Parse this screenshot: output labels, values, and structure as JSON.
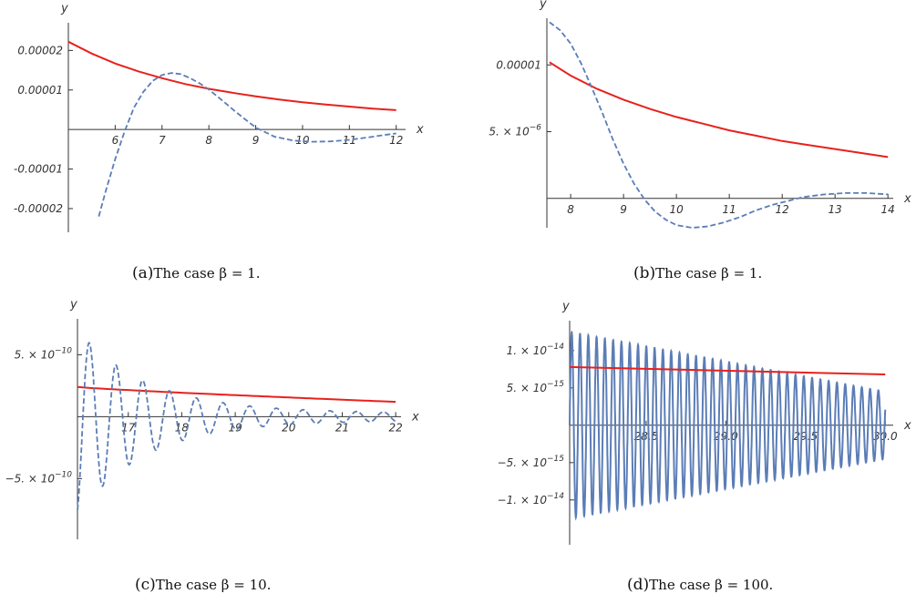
{
  "colors": {
    "red_curve": "#e8211d",
    "blue_curve": "#5b7db6"
  },
  "chart_data": [
    {
      "id": "a",
      "type": "line",
      "xlabel": "x",
      "ylabel": "y",
      "caption_prefix": "(a)",
      "caption_text": "The case β = 1.",
      "xlim": [
        5,
        12.2
      ],
      "ylim": [
        -2.6e-05,
        2.7e-05
      ],
      "x_ticks": [
        6,
        7,
        8,
        9,
        10,
        11,
        12
      ],
      "x_tick_labels": [
        "6",
        "7",
        "8",
        "9",
        "10",
        "11",
        "12"
      ],
      "y_ticks": [
        2e-05,
        1e-05,
        -1e-05,
        -2e-05
      ],
      "y_tick_labels": [
        "0.00002",
        "0.00001",
        "-0.00001",
        "-0.00002"
      ],
      "series": [
        {
          "style": "solid",
          "color": "#e8211d",
          "x": [
            5.0,
            5.5,
            6.0,
            6.5,
            7.0,
            7.5,
            8.0,
            8.5,
            9.0,
            9.5,
            10.0,
            10.5,
            11.0,
            11.5,
            12.0
          ],
          "y": [
            2.22e-05,
            1.92e-05,
            1.67e-05,
            1.47e-05,
            1.3e-05,
            1.15e-05,
            1.03e-05,
            9.3e-06,
            8.4e-06,
            7.6e-06,
            6.9e-06,
            6.3e-06,
            5.8e-06,
            5.3e-06,
            4.9e-06
          ]
        },
        {
          "style": "dashed",
          "color": "#5b7db6",
          "x": [
            5.65,
            5.8,
            6.0,
            6.2,
            6.4,
            6.6,
            6.8,
            7.0,
            7.2,
            7.4,
            7.6,
            7.8,
            8.0,
            8.3,
            8.6,
            9.0,
            9.4,
            9.8,
            10.2,
            10.6,
            11.0,
            11.4,
            11.8,
            12.0
          ],
          "y": [
            -2.2e-05,
            -1.55e-05,
            -7.5e-06,
            -5e-07,
            5.5e-06,
            9.5e-06,
            1.23e-05,
            1.38e-05,
            1.43e-05,
            1.4e-05,
            1.3e-05,
            1.17e-05,
            1.01e-05,
            7.2e-06,
            4.2e-06,
            5e-07,
            -1.8e-06,
            -2.8e-06,
            -3.1e-06,
            -3e-06,
            -2.6e-06,
            -2e-06,
            -1.3e-06,
            -1e-06
          ]
        }
      ]
    },
    {
      "id": "b",
      "type": "line",
      "xlabel": "x",
      "ylabel": "y",
      "caption_prefix": "(b)",
      "caption_text": "The case β = 1.",
      "xlim": [
        7.55,
        14.1
      ],
      "ylim": [
        -2.2e-06,
        1.35e-05
      ],
      "x_ticks": [
        8,
        9,
        10,
        11,
        12,
        13,
        14
      ],
      "x_tick_labels": [
        "8",
        "9",
        "10",
        "11",
        "12",
        "13",
        "14"
      ],
      "y_ticks": [
        1e-05,
        5e-06
      ],
      "y_tick_labels": [
        "0.00001",
        "5. × 10"
      ],
      "y_tick_exponents": [
        "",
        "−6"
      ],
      "series": [
        {
          "style": "solid",
          "color": "#e8211d",
          "x": [
            7.6,
            8.0,
            8.5,
            9.0,
            9.5,
            10.0,
            10.5,
            11.0,
            11.5,
            12.0,
            12.5,
            13.0,
            13.5,
            14.0
          ],
          "y": [
            1.02e-05,
            9.2e-06,
            8.2e-06,
            7.4e-06,
            6.7e-06,
            6.1e-06,
            5.6e-06,
            5.1e-06,
            4.7e-06,
            4.3e-06,
            4e-06,
            3.7e-06,
            3.4e-06,
            3.1e-06
          ],
          "name": ""
        },
        {
          "style": "dashed",
          "color": "#5b7db6",
          "x": [
            7.6,
            7.8,
            8.0,
            8.2,
            8.4,
            8.6,
            8.8,
            9.0,
            9.2,
            9.4,
            9.6,
            9.8,
            10.0,
            10.3,
            10.6,
            10.9,
            11.2,
            11.5,
            11.8,
            12.1,
            12.4,
            12.8,
            13.2,
            13.6,
            14.0
          ],
          "y": [
            1.32e-05,
            1.26e-05,
            1.16e-05,
            1.01e-05,
            8.3e-06,
            6.4e-06,
            4.4e-06,
            2.6e-06,
            1.1e-06,
            -1e-07,
            -1e-06,
            -1.6e-06,
            -2e-06,
            -2.2e-06,
            -2.1e-06,
            -1.8e-06,
            -1.4e-06,
            -9e-07,
            -5e-07,
            -2e-07,
            1e-07,
            3e-07,
            4e-07,
            4e-07,
            3e-07
          ]
        }
      ]
    },
    {
      "id": "c",
      "type": "line",
      "xlabel": "x",
      "ylabel": "y",
      "caption_prefix": "(c)",
      "caption_text": "The case β = 10.",
      "xlim": [
        16.05,
        22.1
      ],
      "ylim": [
        -9.9e-10,
        7.9e-10
      ],
      "x_ticks": [
        17,
        18,
        19,
        20,
        21,
        22
      ],
      "x_tick_labels": [
        "17",
        "18",
        "19",
        "20",
        "21",
        "22"
      ],
      "y_ticks": [
        5e-10,
        -5e-10
      ],
      "y_tick_labels": [
        "5. × 10",
        "−5. × 10"
      ],
      "y_tick_exponents": [
        "−10",
        "−10"
      ],
      "red": {
        "x0": 16.05,
        "x1": 22.0,
        "y0": 2.4e-10,
        "y1": 1.2e-10
      },
      "oscillation": {
        "x_start": 16.05,
        "x_end": 22.0,
        "period": 0.5,
        "amplitude_start": 7.2e-10,
        "decay": 0.78,
        "center": -5e-11
      }
    },
    {
      "id": "d",
      "type": "line",
      "xlabel": "x",
      "ylabel": "y",
      "caption_prefix": "(d)",
      "caption_text": "The case β = 100.",
      "xlim": [
        28.02,
        30.05
      ],
      "ylim": [
        -1.6e-14,
        1.4e-14
      ],
      "x_ticks": [
        28.5,
        29.0,
        29.5,
        30.0
      ],
      "x_tick_labels": [
        "28.5",
        "29.0",
        "29.5",
        "30.0"
      ],
      "y_ticks": [
        1e-14,
        5e-15,
        -5e-15,
        -1e-14
      ],
      "y_tick_labels": [
        "1. × 10",
        "5. × 10",
        "−5. × 10",
        "−1. × 10"
      ],
      "y_tick_exponents": [
        "−14",
        "−15",
        "−15",
        "−14"
      ],
      "red": {
        "x0": 28.02,
        "x1": 30.0,
        "y0": 7.8e-15,
        "y1": 6.8e-15
      },
      "oscillation": {
        "x_start": 28.02,
        "x_end": 30.0,
        "period": 0.052,
        "amp_start": 1.25e-14,
        "amp_end": 4.5e-15,
        "center_start": 0.0,
        "center_end": 0.0
      }
    }
  ]
}
